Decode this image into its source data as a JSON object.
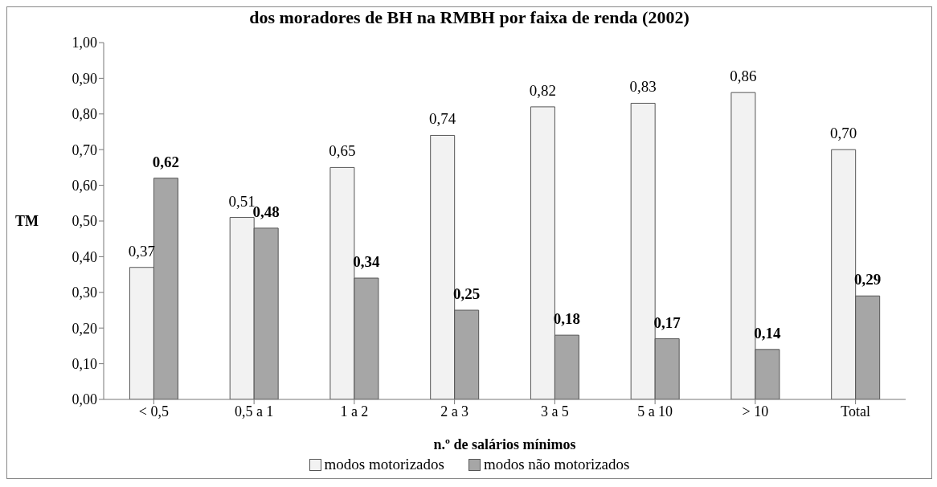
{
  "chart_data": {
    "type": "bar",
    "title": "dos moradores de BH na RMBH por faixa de renda (2002)",
    "xlabel": "n.º de salários mínimos",
    "ylabel": "TM",
    "categories": [
      "< 0,5",
      "0,5 a 1",
      "1 a 2",
      "2 a 3",
      "3 a 5",
      "5 a 10",
      "> 10",
      "Total"
    ],
    "series": [
      {
        "name": "modos motorizados",
        "color": "#f2f2f2",
        "values": [
          0.37,
          0.51,
          0.65,
          0.74,
          0.82,
          0.83,
          0.86,
          0.7
        ],
        "value_labels": [
          "0,37",
          "0,51",
          "0,65",
          "0,74",
          "0,82",
          "0,83",
          "0,86",
          "0,70"
        ]
      },
      {
        "name": "modos não motorizados",
        "color": "#a6a6a6",
        "values": [
          0.62,
          0.48,
          0.34,
          0.25,
          0.18,
          0.17,
          0.14,
          0.29
        ],
        "value_labels": [
          "0,62",
          "0,48",
          "0,34",
          "0,25",
          "0,18",
          "0,17",
          "0,14",
          "0,29"
        ]
      }
    ],
    "ylim": [
      0,
      1
    ],
    "yticks": [
      {
        "value": 0,
        "label": "0,00"
      },
      {
        "value": 0.1,
        "label": "0,10"
      },
      {
        "value": 0.2,
        "label": "0,20"
      },
      {
        "value": 0.3,
        "label": "0,30"
      },
      {
        "value": 0.4,
        "label": "0,40"
      },
      {
        "value": 0.5,
        "label": "0,50"
      },
      {
        "value": 0.6,
        "label": "0,60"
      },
      {
        "value": 0.7,
        "label": "0,70"
      },
      {
        "value": 0.8,
        "label": "0,80"
      },
      {
        "value": 0.9,
        "label": "0,90"
      },
      {
        "value": 1,
        "label": "1,00"
      }
    ],
    "grid": false,
    "legend": "bottom"
  }
}
